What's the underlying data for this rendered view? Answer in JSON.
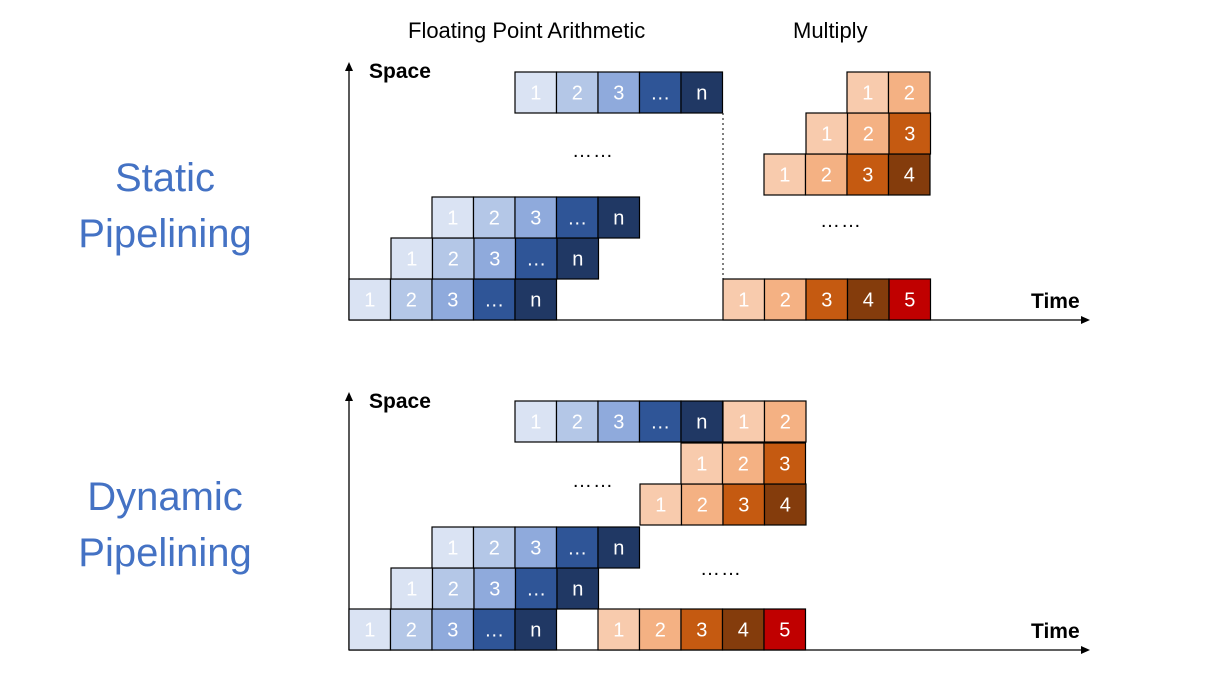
{
  "titles": {
    "floating_point": "Floating Point Arithmetic",
    "multiply": "Multiply"
  },
  "static": {
    "label_line1": "Static",
    "label_line2": "Pipelining",
    "space_label": "Space",
    "time_label": "Time",
    "ellipsis_fp": "……",
    "ellipsis_mul": "……"
  },
  "dynamic": {
    "label_line1": "Dynamic",
    "label_line2": "Pipelining",
    "space_label": "Space",
    "time_label": "Time",
    "ellipsis_fp": "……",
    "ellipsis_mul": "……"
  },
  "stages": {
    "fp": [
      "1",
      "2",
      "3",
      "…",
      "n"
    ],
    "mul": [
      "1",
      "2",
      "3",
      "4",
      "5"
    ]
  },
  "colors": {
    "fp": [
      "#dae3f3",
      "#b4c7e7",
      "#8faadc",
      "#2f5597",
      "#203864"
    ],
    "mul": [
      "#f8cbad",
      "#f4b183",
      "#c55a11",
      "#843c0c",
      "#c00000"
    ],
    "side_label": "#4472c4",
    "border": "#000000"
  }
}
